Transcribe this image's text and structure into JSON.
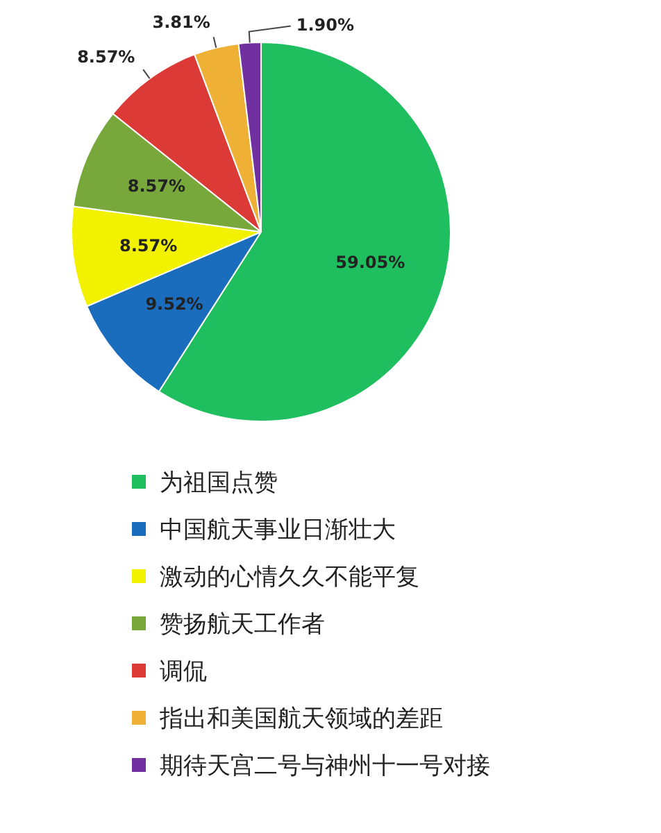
{
  "chart_data": {
    "type": "pie",
    "categories": [
      "为祖国点赞",
      "中国航天事业日渐壮大",
      "激动的心情久久不能平复",
      "赞扬航天工作者",
      "调侃",
      "指出和美国航天领域的差距",
      "期待天宫二号与神州十一号对接"
    ],
    "values": [
      59.05,
      9.52,
      8.57,
      8.57,
      8.57,
      3.81,
      1.9
    ],
    "value_labels": [
      "59.05%",
      "9.52%",
      "8.57%",
      "8.57%",
      "8.57%",
      "3.81%",
      "1.90%"
    ],
    "colors": [
      "#1fbe5f",
      "#1a6cbc",
      "#f2f200",
      "#78a83c",
      "#dc3a36",
      "#eeb035",
      "#7030a0"
    ],
    "legend": "bottom"
  }
}
